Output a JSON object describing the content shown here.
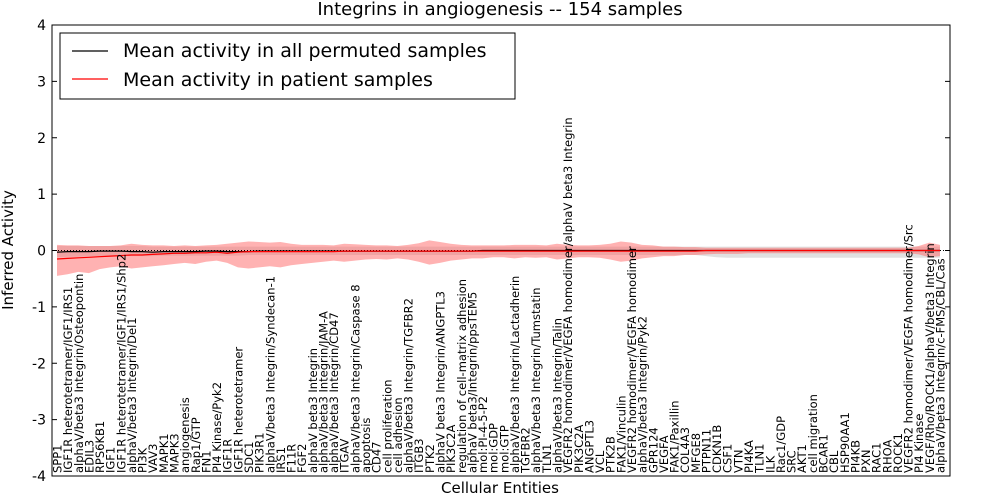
{
  "chart_data": {
    "type": "line",
    "title": "Integrins in angiogenesis -- 154 samples",
    "xlabel": "Cellular Entities",
    "ylabel": "Inferred Activity",
    "ylim": [
      -4,
      4
    ],
    "yticks": [
      -4,
      -3,
      -2,
      -1,
      0,
      1,
      2,
      3,
      4
    ],
    "grid": false,
    "legend_position": "top-left",
    "colors": {
      "permuted": "#000000",
      "patient": "#ff0000",
      "patient_band": "#ff6666",
      "permuted_band": "#bbbbbb"
    },
    "categories": [
      "SPP1",
      "IGF1R heterotetramer/IGF1/IRS1",
      "alphaV/beta3 Integrin/Osteopontin",
      "EDIL3",
      "RPS6KB1",
      "IGF1",
      "IGF1R heterotetramer/IGF1/IRS1/Shp2",
      "alphaV/beta3 Integrin/Del1",
      "PI3K",
      "VAV3",
      "MAPK1",
      "MAPK3",
      "angiogenesis",
      "Rap1/GTP",
      "FN1",
      "PI4 Kinase/Pyk2",
      "IGF1R",
      "IGF1R heterotetramer",
      "SDC1",
      "PIK3R1",
      "alphaV/beta3 Integrin/Syndecan-1",
      "IRS1",
      "F11R",
      "FGF2",
      "alphaV beta3 Integrin",
      "alphaV/beta3 Integrin/JAM-A",
      "alphaV/beta3 Integrin/CD47",
      "ITGAV",
      "alphaV/beta3 Integrin/Caspase 8",
      "apoptosis",
      "CD47",
      "cell proliferation",
      "cell adhesion",
      "alphaV/beta3 Integrin/TGFBR2",
      "ITGB3",
      "PTK2",
      "alphaV beta3 Integrin/ANGPTL3",
      "PIK3C2A",
      "regulation of cell-matrix adhesion",
      "alphaV beta3/Integrin/ppsTEM5",
      "mol:PI-4-5-P2",
      "mol:GDP",
      "mol:GTP",
      "alphaV/beta3 Integrin/Lactadherin",
      "TGFBR2",
      "alphaV/beta3 Integrin/Tumstatin",
      "TLN1",
      "alphaV/beta3 Integrin/Talin",
      "VEGFR2 homodimer/VEGFA homodimer/alphaV beta3 Integrin",
      "PIK3C2A",
      "ANGPTL3",
      "VCL",
      "PTK2B",
      "FAK1/Vinculin",
      "VEGFR2 homodimer/VEGFA homodimer",
      "alphaV/beta3 Integrin/Pyk2",
      "GPR124",
      "VEGFA",
      "FAK1/Paxillin",
      "COL4A3",
      "MFGE8",
      "PTPN11",
      "CDKN1B",
      "CSF1",
      "VTN",
      "PI4KA",
      "TLN1",
      "ILK",
      "Rac1/GDP",
      "SRC",
      "AKT1",
      "cell migration",
      "BCAR1",
      "CBL",
      "HSP90AA1",
      "PI4KB",
      "PXN",
      "RAC1",
      "RHOA",
      "ROCK1",
      "VEGFR2 homodimer/VEGFA homodimer/Src",
      "PI4 Kinase",
      "VEGF/Rho/ROCK1/alphaV/beta3 Integrin",
      "alphaV/beta3 Integrin/c-FMS/CBL/Cas"
    ],
    "series": [
      {
        "name": "Mean activity in all permuted samples",
        "values": [
          -0.03,
          -0.02,
          -0.02,
          -0.02,
          -0.01,
          -0.01,
          -0.01,
          -0.02,
          -0.02,
          -0.03,
          -0.02,
          -0.02,
          -0.02,
          -0.02,
          -0.01,
          -0.01,
          -0.02,
          -0.02,
          -0.02,
          -0.01,
          -0.01,
          -0.01,
          -0.01,
          -0.01,
          -0.01,
          -0.01,
          -0.01,
          -0.01,
          -0.01,
          -0.01,
          -0.01,
          -0.01,
          -0.01,
          -0.01,
          -0.01,
          -0.01,
          -0.01,
          -0.01,
          -0.01,
          -0.01,
          0.0,
          0.0,
          0.0,
          0.0,
          0.0,
          0.0,
          0.0,
          0.0,
          0.0,
          0.0,
          0.0,
          0.0,
          0.0,
          0.0,
          0.0,
          0.0,
          0.0,
          0.0,
          0.0,
          0.0,
          0.0,
          0.0,
          0.0,
          0.0,
          0.0,
          0.0,
          0.0,
          0.0,
          0.0,
          0.0,
          0.0,
          0.0,
          0.0,
          0.0,
          0.0,
          0.0,
          0.0,
          0.0,
          0.0,
          0.0,
          0.0,
          0.0,
          0.0,
          0.0
        ],
        "lower": [
          -0.12,
          -0.11,
          -0.11,
          -0.1,
          -0.1,
          -0.1,
          -0.1,
          -0.1,
          -0.1,
          -0.1,
          -0.09,
          -0.09,
          -0.09,
          -0.09,
          -0.09,
          -0.09,
          -0.09,
          -0.09,
          -0.08,
          -0.08,
          -0.08,
          -0.08,
          -0.08,
          -0.08,
          -0.08,
          -0.08,
          -0.08,
          -0.08,
          -0.08,
          -0.08,
          -0.08,
          -0.08,
          -0.08,
          -0.08,
          -0.08,
          -0.08,
          -0.08,
          -0.08,
          -0.08,
          -0.08,
          -0.08,
          -0.08,
          -0.08,
          -0.08,
          -0.08,
          -0.08,
          -0.08,
          -0.08,
          -0.08,
          -0.08,
          -0.08,
          -0.08,
          -0.08,
          -0.08,
          -0.08,
          -0.08,
          -0.08,
          -0.08,
          -0.08,
          -0.08,
          -0.08,
          -0.1,
          -0.12,
          -0.13,
          -0.13,
          -0.13,
          -0.13,
          -0.13,
          -0.13,
          -0.13,
          -0.13,
          -0.13,
          -0.13,
          -0.13,
          -0.13,
          -0.13,
          -0.13,
          -0.13,
          -0.13,
          -0.13,
          -0.13,
          -0.13,
          -0.13,
          -0.13
        ],
        "upper": [
          0.08,
          0.08,
          0.08,
          0.08,
          0.08,
          0.08,
          0.08,
          0.08,
          0.08,
          0.07,
          0.07,
          0.07,
          0.07,
          0.07,
          0.07,
          0.07,
          0.07,
          0.07,
          0.07,
          0.07,
          0.07,
          0.07,
          0.07,
          0.07,
          0.07,
          0.07,
          0.07,
          0.07,
          0.07,
          0.07,
          0.07,
          0.07,
          0.07,
          0.07,
          0.07,
          0.07,
          0.07,
          0.07,
          0.07,
          0.07,
          0.07,
          0.07,
          0.07,
          0.07,
          0.07,
          0.07,
          0.07,
          0.07,
          0.07,
          0.07,
          0.07,
          0.07,
          0.07,
          0.07,
          0.07,
          0.07,
          0.07,
          0.07,
          0.07,
          0.07,
          0.07,
          0.07,
          0.07,
          0.07,
          0.07,
          0.07,
          0.07,
          0.07,
          0.07,
          0.07,
          0.07,
          0.07,
          0.07,
          0.07,
          0.07,
          0.07,
          0.07,
          0.07,
          0.07,
          0.07,
          0.07,
          0.07,
          0.07,
          0.07
        ]
      },
      {
        "name": "Mean activity in patient samples",
        "values": [
          -0.15,
          -0.14,
          -0.13,
          -0.12,
          -0.11,
          -0.1,
          -0.09,
          -0.08,
          -0.08,
          -0.07,
          -0.06,
          -0.05,
          -0.05,
          -0.04,
          -0.04,
          -0.03,
          -0.05,
          -0.03,
          -0.02,
          -0.02,
          -0.02,
          -0.02,
          -0.02,
          -0.02,
          -0.02,
          -0.02,
          -0.02,
          -0.01,
          -0.01,
          -0.01,
          -0.01,
          -0.01,
          -0.01,
          -0.01,
          -0.01,
          -0.01,
          -0.01,
          -0.01,
          -0.01,
          -0.01,
          -0.01,
          -0.01,
          -0.01,
          -0.01,
          -0.01,
          -0.01,
          -0.01,
          -0.01,
          -0.01,
          -0.01,
          -0.01,
          -0.01,
          -0.01,
          -0.01,
          -0.01,
          -0.01,
          -0.01,
          -0.01,
          -0.01,
          -0.01,
          -0.01,
          0.0,
          0.0,
          0.0,
          0.0,
          0.0,
          0.0,
          0.0,
          0.0,
          0.0,
          0.0,
          0.0,
          0.0,
          0.0,
          0.0,
          0.0,
          0.0,
          0.0,
          0.0,
          0.0,
          0.0,
          0.0,
          0.0,
          0.0
        ],
        "lower": [
          -0.45,
          -0.42,
          -0.38,
          -0.4,
          -0.33,
          -0.3,
          -0.28,
          -0.32,
          -0.3,
          -0.28,
          -0.26,
          -0.24,
          -0.22,
          -0.24,
          -0.2,
          -0.18,
          -0.22,
          -0.3,
          -0.32,
          -0.3,
          -0.28,
          -0.3,
          -0.26,
          -0.24,
          -0.22,
          -0.2,
          -0.18,
          -0.2,
          -0.18,
          -0.16,
          -0.15,
          -0.16,
          -0.14,
          -0.16,
          -0.2,
          -0.25,
          -0.22,
          -0.18,
          -0.16,
          -0.14,
          -0.14,
          -0.12,
          -0.12,
          -0.14,
          -0.12,
          -0.13,
          -0.12,
          -0.16,
          -0.14,
          -0.12,
          -0.12,
          -0.13,
          -0.16,
          -0.2,
          -0.18,
          -0.14,
          -0.12,
          -0.1,
          -0.1,
          -0.08,
          -0.08,
          -0.07,
          -0.06,
          -0.06,
          -0.06,
          -0.05,
          -0.05,
          -0.05,
          -0.05,
          -0.05,
          -0.05,
          -0.05,
          -0.05,
          -0.05,
          -0.05,
          -0.05,
          -0.05,
          -0.05,
          -0.05,
          -0.05,
          -0.05,
          -0.07,
          -0.12,
          -0.1
        ],
        "upper": [
          0.1,
          0.09,
          0.09,
          0.08,
          0.08,
          0.08,
          0.09,
          0.12,
          0.1,
          0.09,
          0.09,
          0.08,
          0.09,
          0.08,
          0.09,
          0.1,
          0.12,
          0.14,
          0.16,
          0.15,
          0.14,
          0.15,
          0.12,
          0.1,
          0.1,
          0.1,
          0.09,
          0.12,
          0.11,
          0.1,
          0.09,
          0.09,
          0.08,
          0.1,
          0.13,
          0.18,
          0.15,
          0.12,
          0.1,
          0.09,
          0.09,
          0.09,
          0.09,
          0.1,
          0.1,
          0.1,
          0.09,
          0.12,
          0.1,
          0.09,
          0.09,
          0.1,
          0.12,
          0.16,
          0.14,
          0.1,
          0.09,
          0.07,
          0.07,
          0.06,
          0.06,
          0.05,
          0.05,
          0.05,
          0.05,
          0.05,
          0.05,
          0.05,
          0.05,
          0.05,
          0.05,
          0.05,
          0.05,
          0.05,
          0.05,
          0.05,
          0.05,
          0.05,
          0.05,
          0.05,
          0.05,
          0.08,
          0.14,
          0.1
        ]
      }
    ]
  }
}
